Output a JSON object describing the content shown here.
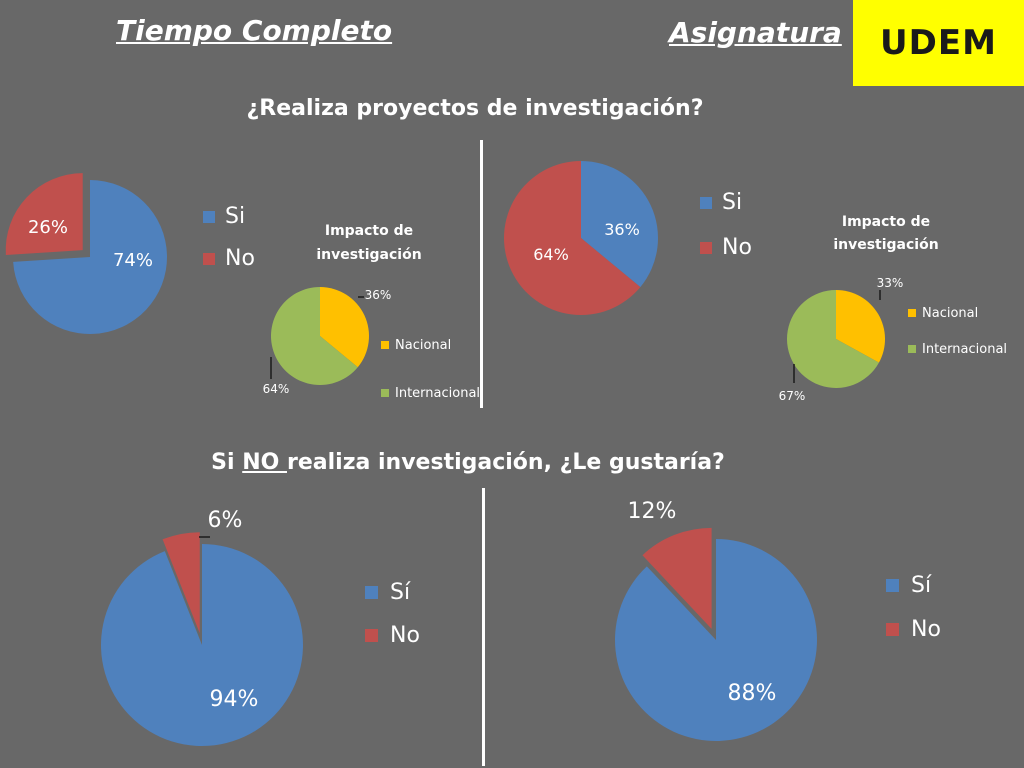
{
  "header": {
    "left_title": "Tiempo Completo",
    "right_title": "Asignatura",
    "logo": "UDEM"
  },
  "questions": {
    "q1": "¿Realiza proyectos de investigación?",
    "q2_prefix": "Si ",
    "q2_underlined": "NO ",
    "q2_suffix": "realiza investigación, ¿Le gustaría?"
  },
  "colors": {
    "blue": "#4f81bd",
    "red": "#c0504d",
    "orange": "#ffc000",
    "green": "#9bbb59",
    "background": "#686868",
    "logo_bg": "#ffff00"
  },
  "chart_data": [
    {
      "id": "tc-investigacion",
      "type": "pie",
      "categories": [
        "Si",
        "No"
      ],
      "values": [
        74,
        26
      ],
      "labels": [
        "74%",
        "26%"
      ],
      "colors": [
        "#4f81bd",
        "#c0504d"
      ],
      "legend": [
        "Si",
        "No"
      ]
    },
    {
      "id": "tc-impacto",
      "type": "pie",
      "title": "Impacto de investigación",
      "categories": [
        "Nacional",
        "Internacional"
      ],
      "values": [
        36,
        64
      ],
      "labels": [
        "36%",
        "64%"
      ],
      "colors": [
        "#ffc000",
        "#9bbb59"
      ],
      "legend": [
        "Nacional",
        "Internacional"
      ]
    },
    {
      "id": "as-investigacion",
      "type": "pie",
      "categories": [
        "Si",
        "No"
      ],
      "values": [
        36,
        64
      ],
      "labels": [
        "36%",
        "64%"
      ],
      "colors": [
        "#4f81bd",
        "#c0504d"
      ],
      "legend": [
        "Si",
        "No"
      ]
    },
    {
      "id": "as-impacto",
      "type": "pie",
      "title": "Impacto de investigación",
      "categories": [
        "Nacional",
        "Internacional"
      ],
      "values": [
        33,
        67
      ],
      "labels": [
        "33%",
        "67%"
      ],
      "colors": [
        "#ffc000",
        "#9bbb59"
      ],
      "legend": [
        "Nacional",
        "Internacional"
      ]
    },
    {
      "id": "tc-gustaria",
      "type": "pie",
      "categories": [
        "Sí",
        "No"
      ],
      "values": [
        94,
        6
      ],
      "labels": [
        "94%",
        "6%"
      ],
      "colors": [
        "#4f81bd",
        "#c0504d"
      ],
      "legend": [
        "Sí",
        "No"
      ]
    },
    {
      "id": "as-gustaria",
      "type": "pie",
      "categories": [
        "Sí",
        "No"
      ],
      "values": [
        88,
        12
      ],
      "labels": [
        "88%",
        "12%"
      ],
      "colors": [
        "#4f81bd",
        "#c0504d"
      ],
      "legend": [
        "Sí",
        "No"
      ]
    }
  ]
}
